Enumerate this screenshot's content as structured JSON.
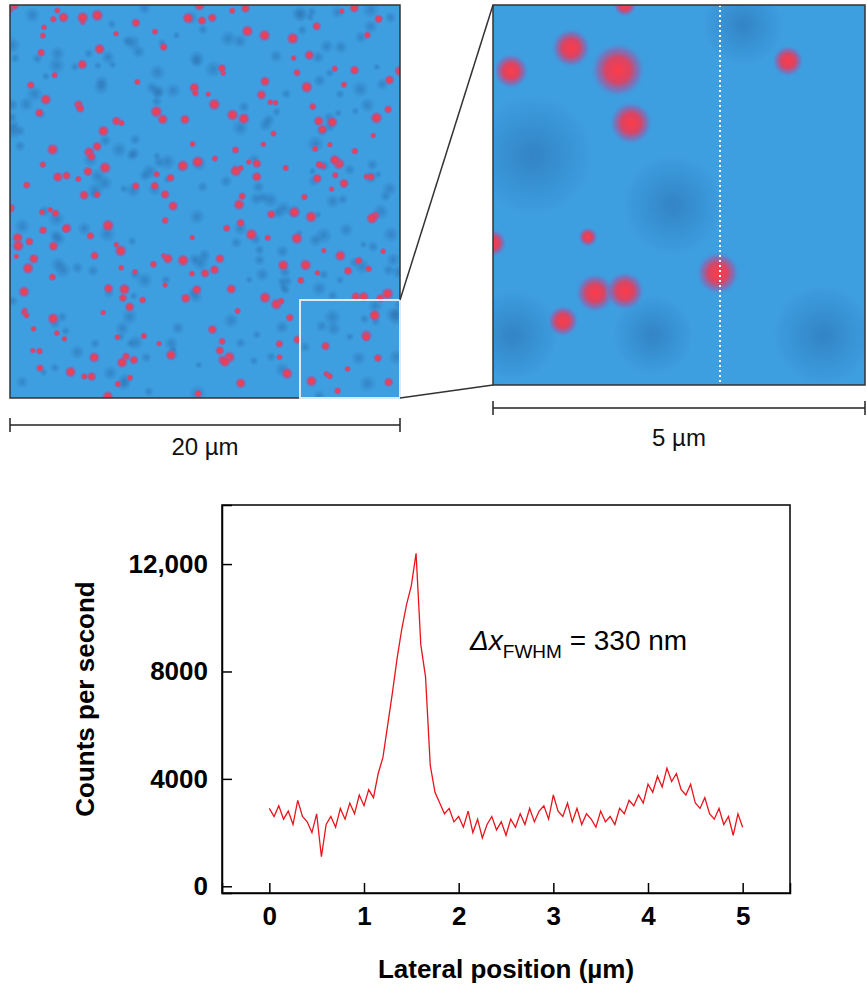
{
  "chart_data": {
    "type": "line",
    "xlabel": "Lateral position (µm)",
    "ylabel": "Counts per second",
    "annotation": {
      "main": "Δx",
      "sub": "FWHM",
      "rest": " = 330 nm"
    },
    "color": "#e8141b",
    "xlim": [
      -0.5,
      5.5
    ],
    "xticks": [
      0,
      1,
      2,
      3,
      4,
      5
    ],
    "ylim": [
      -250,
      14200
    ],
    "yticks": [
      0,
      4000,
      8000,
      {
        "value": 12000,
        "label": "12,000"
      }
    ],
    "x": [
      0,
      0.05,
      0.1,
      0.15,
      0.2,
      0.25,
      0.3,
      0.35,
      0.4,
      0.45,
      0.5,
      0.55,
      0.6,
      0.65,
      0.7,
      0.75,
      0.8,
      0.85,
      0.9,
      0.95,
      1,
      1.05,
      1.1,
      1.15,
      1.2,
      1.25,
      1.3,
      1.35,
      1.4,
      1.45,
      1.5,
      1.55,
      1.6,
      1.65,
      1.7,
      1.75,
      1.8,
      1.85,
      1.9,
      1.95,
      2,
      2.05,
      2.1,
      2.15,
      2.2,
      2.25,
      2.3,
      2.35,
      2.4,
      2.45,
      2.5,
      2.55,
      2.6,
      2.65,
      2.7,
      2.75,
      2.8,
      2.85,
      2.9,
      2.95,
      3,
      3.05,
      3.1,
      3.15,
      3.2,
      3.25,
      3.3,
      3.35,
      3.4,
      3.45,
      3.5,
      3.55,
      3.6,
      3.65,
      3.7,
      3.75,
      3.8,
      3.85,
      3.9,
      3.95,
      4,
      4.05,
      4.1,
      4.15,
      4.2,
      4.25,
      4.3,
      4.35,
      4.4,
      4.45,
      4.5,
      4.55,
      4.6,
      4.65,
      4.7,
      4.75,
      4.8,
      4.85,
      4.9,
      4.95,
      5
    ],
    "values": [
      2900,
      2600,
      3000,
      2500,
      2800,
      2300,
      3200,
      2600,
      2400,
      2000,
      2700,
      1100,
      2300,
      2600,
      2200,
      2900,
      2500,
      3100,
      2700,
      3400,
      3000,
      3600,
      3300,
      4200,
      4800,
      6000,
      7200,
      8500,
      9600,
      10500,
      11200,
      12400,
      9000,
      7800,
      4500,
      3500,
      3100,
      2700,
      2900,
      2400,
      2600,
      2200,
      2800,
      2000,
      2500,
      1800,
      2300,
      2600,
      2100,
      2400,
      1900,
      2500,
      2200,
      2700,
      2300,
      2900,
      2400,
      2800,
      3000,
      2500,
      3400,
      2800,
      2600,
      3100,
      2400,
      2900,
      2300,
      2700,
      2500,
      2200,
      2800,
      2400,
      2600,
      2300,
      2900,
      2700,
      3200,
      3000,
      3400,
      3100,
      3800,
      3500,
      4100,
      3700,
      4400,
      3900,
      4200,
      3600,
      3400,
      3800,
      3100,
      2900,
      3300,
      2700,
      2500,
      2900,
      2300,
      2600,
      1900,
      2700,
      2200
    ]
  },
  "figure": {
    "scale_bars": [
      "20 µm",
      "5 µm"
    ]
  }
}
